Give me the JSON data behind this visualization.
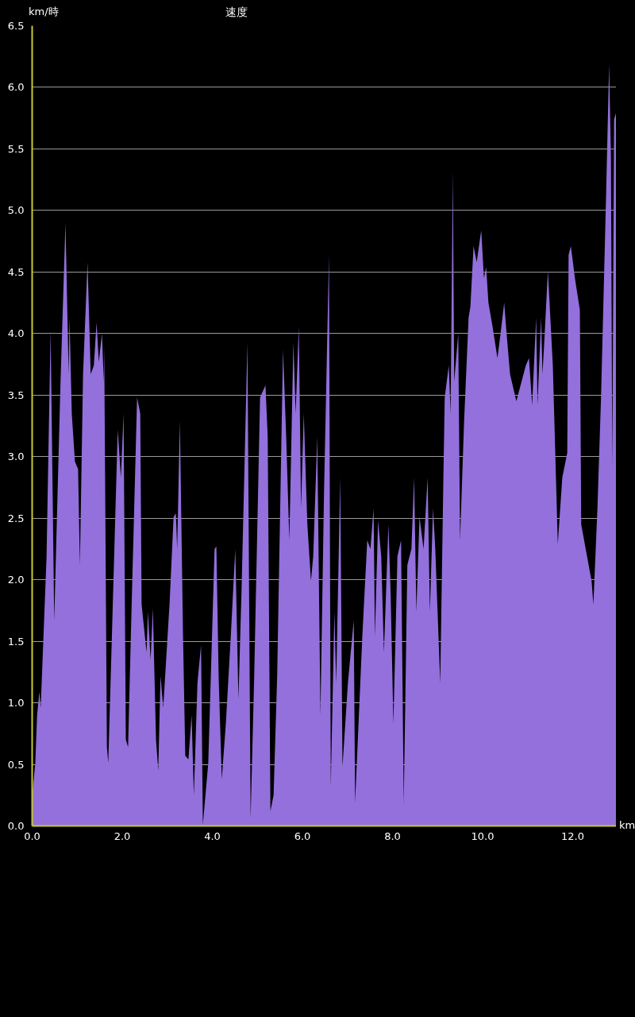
{
  "chart_data": {
    "type": "area",
    "title": "速度",
    "ylabel": "km/時",
    "xlabel": "km",
    "color": "#9370db",
    "grid": "y",
    "xlim": [
      0,
      12.97
    ],
    "ylim": [
      0,
      6.5
    ],
    "xticks": [
      {
        "value": 0,
        "label": "0.0"
      },
      {
        "value": 2,
        "label": "2.0"
      },
      {
        "value": 4,
        "label": "4.0"
      },
      {
        "value": 6,
        "label": "6.0"
      },
      {
        "value": 8,
        "label": "8.0"
      },
      {
        "value": 10,
        "label": "10.0"
      },
      {
        "value": 12,
        "label": "12.0"
      }
    ],
    "yticks": [
      {
        "value": 0,
        "label": "0.0"
      },
      {
        "value": 0.5,
        "label": "0.5"
      },
      {
        "value": 1,
        "label": "1.0"
      },
      {
        "value": 1.5,
        "label": "1.5"
      },
      {
        "value": 2,
        "label": "2.0"
      },
      {
        "value": 2.5,
        "label": "2.5"
      },
      {
        "value": 3,
        "label": "3.0"
      },
      {
        "value": 3.5,
        "label": "3.5"
      },
      {
        "value": 4,
        "label": "4.0"
      },
      {
        "value": 4.5,
        "label": "4.5"
      },
      {
        "value": 5,
        "label": "5.0"
      },
      {
        "value": 5.5,
        "label": "5.5"
      },
      {
        "value": 6,
        "label": "6.0"
      },
      {
        "value": 6.5,
        "label": "6.5"
      }
    ],
    "x": [
      0.0,
      0.07,
      0.11,
      0.16,
      0.19,
      0.32,
      0.41,
      0.49,
      0.63,
      0.74,
      0.81,
      0.83,
      0.88,
      0.95,
      1.02,
      1.06,
      1.13,
      1.23,
      1.3,
      1.37,
      1.43,
      1.48,
      1.55,
      1.59,
      1.6,
      1.66,
      1.69,
      1.76,
      1.9,
      1.97,
      2.03,
      2.08,
      2.13,
      2.2,
      2.33,
      2.4,
      2.43,
      2.54,
      2.57,
      2.63,
      2.68,
      2.75,
      2.8,
      2.85,
      2.91,
      3.05,
      3.14,
      3.19,
      3.22,
      3.28,
      3.35,
      3.4,
      3.47,
      3.54,
      3.59,
      3.67,
      3.75,
      3.79,
      3.91,
      4.05,
      4.09,
      4.14,
      4.21,
      4.3,
      4.41,
      4.51,
      4.58,
      4.65,
      4.78,
      4.85,
      4.93,
      5.06,
      5.18,
      5.23,
      5.29,
      5.36,
      5.44,
      5.57,
      5.64,
      5.71,
      5.8,
      5.85,
      5.92,
      5.97,
      6.03,
      6.11,
      6.19,
      6.24,
      6.33,
      6.4,
      6.48,
      6.59,
      6.63,
      6.71,
      6.75,
      6.84,
      6.89,
      7.01,
      7.14,
      7.17,
      7.33,
      7.44,
      7.51,
      7.58,
      7.61,
      7.68,
      7.75,
      7.81,
      7.91,
      7.96,
      8.02,
      8.11,
      8.19,
      8.25,
      8.33,
      8.42,
      8.48,
      8.53,
      8.6,
      8.69,
      8.78,
      8.83,
      8.9,
      8.95,
      9.06,
      9.13,
      9.16,
      9.25,
      9.29,
      9.34,
      9.37,
      9.46,
      9.5,
      9.59,
      9.69,
      9.73,
      9.8,
      9.87,
      9.97,
      10.03,
      10.08,
      10.13,
      10.22,
      10.33,
      10.4,
      10.48,
      10.52,
      10.61,
      10.75,
      10.96,
      11.03,
      11.1,
      11.19,
      11.22,
      11.3,
      11.33,
      11.38,
      11.45,
      11.56,
      11.67,
      11.77,
      11.88,
      11.91,
      11.96,
      12.05,
      12.16,
      12.19,
      12.42,
      12.46,
      12.55,
      12.63,
      12.74,
      12.81,
      12.85,
      12.88,
      12.92,
      12.97
    ],
    "values": [
      0.25,
      0.51,
      0.9,
      1.09,
      0.96,
      2.19,
      4.03,
      1.67,
      3.61,
      4.9,
      3.67,
      4.13,
      3.35,
      2.96,
      2.9,
      2.12,
      3.67,
      4.58,
      3.67,
      3.74,
      4.09,
      3.77,
      4.0,
      3.61,
      3.9,
      0.64,
      0.51,
      1.41,
      3.22,
      2.83,
      3.35,
      0.7,
      0.64,
      1.67,
      3.48,
      3.35,
      1.8,
      1.41,
      1.74,
      1.35,
      1.77,
      0.7,
      0.45,
      1.22,
      0.96,
      1.8,
      2.51,
      2.54,
      2.25,
      3.29,
      1.54,
      0.57,
      0.54,
      0.9,
      0.25,
      1.16,
      1.47,
      0.01,
      0.51,
      2.25,
      2.27,
      1.22,
      0.38,
      0.83,
      1.54,
      2.25,
      1.03,
      1.93,
      3.93,
      0.06,
      1.22,
      3.48,
      3.58,
      3.16,
      0.12,
      0.25,
      1.22,
      3.87,
      3.16,
      2.32,
      3.93,
      3.35,
      4.06,
      2.58,
      3.35,
      2.45,
      1.99,
      2.19,
      3.16,
      0.9,
      2.71,
      4.64,
      0.32,
      1.74,
      1.16,
      2.83,
      0.48,
      1.16,
      1.67,
      0.19,
      1.54,
      2.32,
      2.25,
      2.58,
      1.54,
      2.48,
      2.19,
      1.41,
      2.45,
      1.87,
      0.83,
      2.19,
      2.32,
      0.19,
      2.12,
      2.25,
      2.83,
      1.74,
      2.51,
      2.25,
      2.83,
      1.74,
      2.58,
      2.25,
      1.16,
      2.83,
      3.48,
      3.74,
      3.35,
      5.32,
      3.61,
      4.0,
      2.32,
      3.29,
      4.13,
      4.22,
      4.71,
      4.58,
      4.84,
      4.45,
      4.54,
      4.25,
      4.06,
      3.8,
      4.0,
      4.25,
      4.06,
      3.67,
      3.45,
      3.74,
      3.8,
      3.42,
      4.13,
      3.42,
      4.13,
      3.67,
      4.0,
      4.51,
      3.74,
      2.29,
      2.83,
      3.03,
      4.64,
      4.71,
      4.45,
      4.19,
      2.45,
      1.99,
      1.8,
      2.58,
      3.48,
      5.09,
      6.19,
      5.42,
      2.9,
      5.74,
      5.8
    ]
  }
}
